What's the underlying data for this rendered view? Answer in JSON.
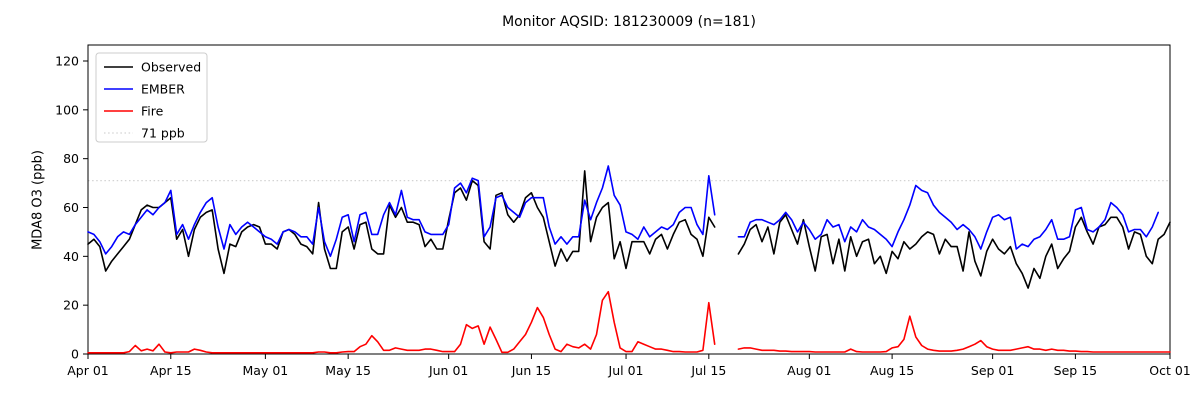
{
  "chart_data": {
    "type": "line",
    "title": "Monitor AQSID: 181230009 (n=181)",
    "xlabel": "",
    "ylabel": "MDA8 O3 (ppb)",
    "ylim": [
      0,
      126
    ],
    "yticks": [
      0,
      20,
      40,
      60,
      80,
      100,
      120
    ],
    "xtick_labels": [
      "Apr 01",
      "Apr 15",
      "May 01",
      "May 15",
      "Jun 01",
      "Jun 15",
      "Jul 01",
      "Jul 15",
      "Aug 01",
      "Aug 15",
      "Sep 01",
      "Sep 15",
      "Oct 01"
    ],
    "xtick_days": [
      0,
      14,
      30,
      44,
      61,
      75,
      91,
      105,
      122,
      136,
      153,
      167,
      183
    ],
    "grid": false,
    "legend_position": "upper left",
    "threshold": {
      "value": 71,
      "label": "71 ppb",
      "color": "#d3d3d3",
      "style": "dotted"
    },
    "dates": [
      "Apr 01",
      "Apr 02",
      "Apr 03",
      "Apr 04",
      "Apr 05",
      "Apr 06",
      "Apr 07",
      "Apr 08",
      "Apr 09",
      "Apr 10",
      "Apr 11",
      "Apr 12",
      "Apr 13",
      "Apr 14",
      "Apr 15",
      "Apr 16",
      "Apr 17",
      "Apr 18",
      "Apr 19",
      "Apr 20",
      "Apr 21",
      "Apr 22",
      "Apr 23",
      "Apr 24",
      "Apr 25",
      "Apr 26",
      "Apr 27",
      "Apr 28",
      "Apr 29",
      "Apr 30",
      "May 01",
      "May 02",
      "May 03",
      "May 04",
      "May 05",
      "May 06",
      "May 07",
      "May 08",
      "May 09",
      "May 10",
      "May 11",
      "May 12",
      "May 13",
      "May 14",
      "May 15",
      "May 16",
      "May 17",
      "May 18",
      "May 19",
      "May 20",
      "May 21",
      "May 22",
      "May 23",
      "May 24",
      "May 25",
      "May 26",
      "May 27",
      "May 28",
      "May 29",
      "May 30",
      "May 31",
      "Jun 01",
      "Jun 02",
      "Jun 03",
      "Jun 04",
      "Jun 05",
      "Jun 06",
      "Jun 07",
      "Jun 08",
      "Jun 09",
      "Jun 10",
      "Jun 11",
      "Jun 12",
      "Jun 13",
      "Jun 14",
      "Jun 15",
      "Jun 16",
      "Jun 17",
      "Jun 18",
      "Jun 19",
      "Jun 20",
      "Jun 21",
      "Jun 22",
      "Jun 23",
      "Jun 24",
      "Jun 25",
      "Jun 26",
      "Jun 27",
      "Jun 28",
      "Jun 29",
      "Jun 30",
      "Jul 01",
      "Jul 02",
      "Jul 03",
      "Jul 04",
      "Jul 05",
      "Jul 06",
      "Jul 07",
      "Jul 08",
      "Jul 09",
      "Jul 10",
      "Jul 11",
      "Jul 12",
      "Jul 13",
      "Jul 14",
      "Jul 15",
      "Jul 16",
      "Jul 17",
      "Jul 18",
      "Jul 19",
      "Jul 20",
      "Jul 21",
      "Jul 22",
      "Jul 23",
      "Jul 24",
      "Jul 25",
      "Jul 26",
      "Jul 27",
      "Jul 28",
      "Jul 29",
      "Jul 30",
      "Jul 31",
      "Aug 01",
      "Aug 02",
      "Aug 03",
      "Aug 04",
      "Aug 05",
      "Aug 06",
      "Aug 07",
      "Aug 08",
      "Aug 09",
      "Aug 10",
      "Aug 11",
      "Aug 12",
      "Aug 13",
      "Aug 14",
      "Aug 15",
      "Aug 16",
      "Aug 17",
      "Aug 18",
      "Aug 19",
      "Aug 20",
      "Aug 21",
      "Aug 22",
      "Aug 23",
      "Aug 24",
      "Aug 25",
      "Aug 26",
      "Aug 27",
      "Aug 28",
      "Aug 29",
      "Aug 30",
      "Aug 31",
      "Sep 01",
      "Sep 02",
      "Sep 03",
      "Sep 04",
      "Sep 05",
      "Sep 06",
      "Sep 07",
      "Sep 08",
      "Sep 09",
      "Sep 10",
      "Sep 11",
      "Sep 12",
      "Sep 13",
      "Sep 14",
      "Sep 15",
      "Sep 16",
      "Sep 17",
      "Sep 18",
      "Sep 19",
      "Sep 20",
      "Sep 21",
      "Sep 22",
      "Sep 23",
      "Sep 24",
      "Sep 25",
      "Sep 26",
      "Sep 27",
      "Sep 28",
      "Sep 29",
      "Sep 30",
      "Oct 01"
    ],
    "series": [
      {
        "name": "Observed",
        "color": "#000000",
        "style": "solid",
        "values": [
          45,
          47,
          44,
          34,
          38,
          41,
          44,
          47,
          53,
          59,
          61,
          60,
          60,
          62,
          64,
          47,
          51,
          40,
          51,
          56,
          58,
          59,
          43,
          33,
          45,
          44,
          50,
          52,
          53,
          52,
          45,
          45,
          43,
          50,
          51,
          49,
          45,
          44,
          41,
          62,
          43,
          35,
          35,
          50,
          52,
          43,
          53,
          54,
          43,
          41,
          41,
          61,
          56,
          60,
          54,
          54,
          53,
          44,
          47,
          43,
          43,
          55,
          66,
          68,
          63,
          71,
          69,
          46,
          43,
          65,
          66,
          57,
          54,
          57,
          64,
          66,
          60,
          56,
          46,
          36,
          43,
          38,
          42,
          42,
          75,
          46,
          56,
          60,
          62,
          39,
          46,
          35,
          46,
          46,
          46,
          41,
          47,
          49,
          43,
          49,
          54,
          55,
          49,
          47,
          40,
          56,
          52,
          null,
          null,
          null,
          41,
          45,
          51,
          53,
          46,
          52,
          41,
          54,
          57,
          51,
          45,
          55,
          44,
          34,
          48,
          49,
          37,
          47,
          34,
          48,
          40,
          46,
          47,
          37,
          40,
          33,
          42,
          39,
          46,
          43,
          45,
          48,
          50,
          49,
          41,
          47,
          44,
          44,
          34,
          50,
          38,
          32,
          42,
          47,
          43,
          41,
          44,
          37,
          33,
          27,
          35,
          31,
          40,
          45,
          35,
          39,
          42,
          52,
          56,
          50,
          45,
          52,
          53,
          56,
          56,
          52,
          43,
          50,
          49,
          40,
          37,
          47,
          49,
          54
        ]
      },
      {
        "name": "EMBER",
        "color": "#0000ff",
        "style": "solid",
        "values": [
          50,
          49,
          46,
          41,
          44,
          48,
          50,
          49,
          53,
          56,
          59,
          57,
          60,
          62,
          67,
          49,
          53,
          47,
          53,
          58,
          62,
          64,
          52,
          43,
          53,
          49,
          52,
          54,
          52,
          50,
          48,
          47,
          45,
          50,
          51,
          50,
          48,
          48,
          45,
          60,
          46,
          40,
          47,
          56,
          57,
          46,
          57,
          58,
          49,
          49,
          57,
          62,
          57,
          67,
          56,
          55,
          55,
          50,
          49,
          49,
          49,
          53,
          68,
          70,
          66,
          72,
          71,
          48,
          52,
          64,
          65,
          60,
          58,
          56,
          62,
          64,
          64,
          64,
          52,
          45,
          48,
          45,
          48,
          48,
          63,
          55,
          62,
          68,
          77,
          65,
          61,
          50,
          49,
          47,
          52,
          48,
          50,
          52,
          51,
          53,
          58,
          60,
          60,
          53,
          49,
          73,
          57,
          null,
          null,
          null,
          48,
          48,
          54,
          55,
          55,
          54,
          53,
          55,
          58,
          55,
          50,
          54,
          51,
          47,
          49,
          55,
          52,
          53,
          46,
          52,
          50,
          55,
          52,
          51,
          49,
          47,
          44,
          50,
          55,
          61,
          69,
          67,
          66,
          61,
          58,
          56,
          54,
          51,
          53,
          51,
          48,
          43,
          50,
          56,
          57,
          55,
          56,
          43,
          45,
          44,
          47,
          48,
          51,
          55,
          47,
          47,
          48,
          59,
          60,
          51,
          50,
          52,
          55,
          62,
          60,
          57,
          50,
          51,
          51,
          48,
          52,
          58,
          null,
          null
        ]
      },
      {
        "name": "Fire",
        "color": "#ff0000",
        "style": "solid",
        "values": [
          0.5,
          0.5,
          0.5,
          0.5,
          0.5,
          0.5,
          0.5,
          1,
          3.5,
          1.3,
          2,
          1.3,
          4,
          0.8,
          0.5,
          0.8,
          0.8,
          0.8,
          2,
          1.5,
          0.8,
          0.5,
          0.5,
          0.5,
          0.5,
          0.5,
          0.5,
          0.5,
          0.5,
          0.5,
          0.5,
          0.5,
          0.5,
          0.5,
          0.5,
          0.5,
          0.5,
          0.5,
          0.5,
          0.8,
          0.8,
          0.5,
          0.5,
          0.8,
          1,
          1,
          3,
          4,
          7.5,
          5,
          1.5,
          1.5,
          2.5,
          2,
          1.5,
          1.5,
          1.5,
          2,
          2,
          1.5,
          1,
          1,
          1,
          4,
          12,
          10.5,
          11.5,
          4,
          11,
          6,
          0.7,
          0.7,
          2,
          5,
          8,
          13,
          19,
          15,
          8,
          2,
          1,
          4,
          3,
          2.5,
          4,
          2,
          8,
          22,
          25.5,
          13,
          2.5,
          1,
          1,
          5,
          4,
          3,
          2,
          2,
          1.5,
          1,
          1,
          0.8,
          0.8,
          0.8,
          1.5,
          21,
          4,
          null,
          null,
          null,
          2,
          2.5,
          2.5,
          2,
          1.5,
          1.5,
          1.5,
          1.2,
          1.2,
          1,
          1,
          1,
          1,
          0.8,
          0.8,
          0.8,
          0.8,
          0.8,
          0.8,
          2,
          1,
          0.8,
          0.8,
          0.8,
          0.8,
          1,
          2.5,
          3,
          6,
          15.5,
          7,
          3.5,
          2,
          1.5,
          1.2,
          1.2,
          1.2,
          1.5,
          2,
          3,
          4,
          5.5,
          3,
          2,
          1.5,
          1.5,
          1.5,
          2,
          2.5,
          3,
          2,
          2,
          1.5,
          2,
          1.5,
          1.5,
          1.2,
          1.2,
          1,
          1,
          0.8,
          0.8,
          0.8,
          0.8,
          0.8,
          0.8,
          0.8,
          0.8,
          0.8,
          0.8,
          0.8,
          0.8,
          0.8,
          0.8
        ]
      }
    ]
  },
  "legend": {
    "items": [
      {
        "label": "Observed",
        "color": "#000000",
        "style": "solid"
      },
      {
        "label": "EMBER",
        "color": "#0000ff",
        "style": "solid"
      },
      {
        "label": "Fire",
        "color": "#ff0000",
        "style": "solid"
      },
      {
        "label": "71 ppb",
        "color": "#d3d3d3",
        "style": "dotted"
      }
    ]
  }
}
